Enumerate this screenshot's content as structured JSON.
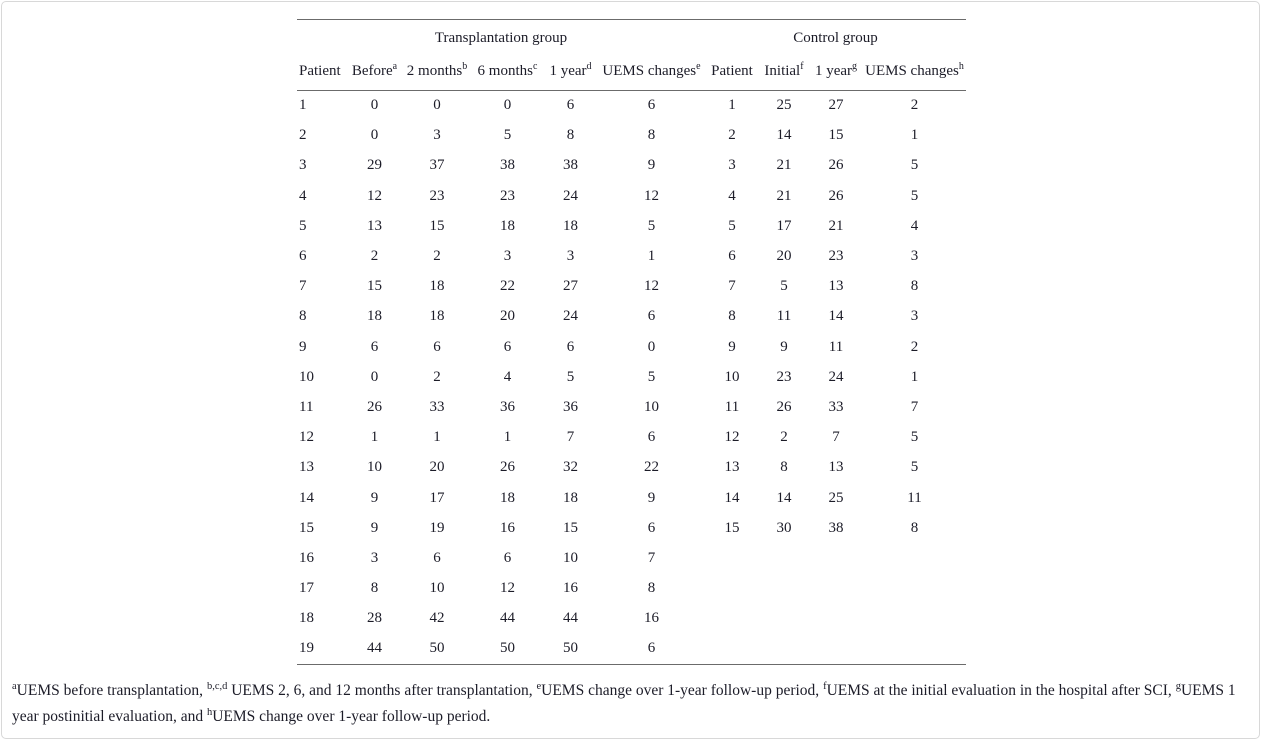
{
  "page": {
    "background": "#ffffff",
    "border_color": "#d8d8d8",
    "text_color": "#1c1c28",
    "rule_color": "#6b6b6b"
  },
  "table": {
    "group_headers": [
      {
        "label": "Transplantation group",
        "span": 6
      },
      {
        "label": "Control group",
        "span": 4
      }
    ],
    "columns": [
      {
        "label": "Patient",
        "sup": ""
      },
      {
        "label": "Before",
        "sup": "a"
      },
      {
        "label": "2 months",
        "sup": "b"
      },
      {
        "label": "6 months",
        "sup": "c"
      },
      {
        "label": "1 year",
        "sup": "d"
      },
      {
        "label": "UEMS changes",
        "sup": "e"
      },
      {
        "label": "Patient",
        "sup": ""
      },
      {
        "label": "Initial",
        "sup": "f"
      },
      {
        "label": "1 year",
        "sup": "g"
      },
      {
        "label": "UEMS changes",
        "sup": "h"
      }
    ],
    "rows": [
      [
        "1",
        "0",
        "0",
        "0",
        "6",
        "6",
        "1",
        "25",
        "27",
        "2"
      ],
      [
        "2",
        "0",
        "3",
        "5",
        "8",
        "8",
        "2",
        "14",
        "15",
        "1"
      ],
      [
        "3",
        "29",
        "37",
        "38",
        "38",
        "9",
        "3",
        "21",
        "26",
        "5"
      ],
      [
        "4",
        "12",
        "23",
        "23",
        "24",
        "12",
        "4",
        "21",
        "26",
        "5"
      ],
      [
        "5",
        "13",
        "15",
        "18",
        "18",
        "5",
        "5",
        "17",
        "21",
        "4"
      ],
      [
        "6",
        "2",
        "2",
        "3",
        "3",
        "1",
        "6",
        "20",
        "23",
        "3"
      ],
      [
        "7",
        "15",
        "18",
        "22",
        "27",
        "12",
        "7",
        "5",
        "13",
        "8"
      ],
      [
        "8",
        "18",
        "18",
        "20",
        "24",
        "6",
        "8",
        "11",
        "14",
        "3"
      ],
      [
        "9",
        "6",
        "6",
        "6",
        "6",
        "0",
        "9",
        "9",
        "11",
        "2"
      ],
      [
        "10",
        "0",
        "2",
        "4",
        "5",
        "5",
        "10",
        "23",
        "24",
        "1"
      ],
      [
        "11",
        "26",
        "33",
        "36",
        "36",
        "10",
        "11",
        "26",
        "33",
        "7"
      ],
      [
        "12",
        "1",
        "1",
        "1",
        "7",
        "6",
        "12",
        "2",
        "7",
        "5"
      ],
      [
        "13",
        "10",
        "20",
        "26",
        "32",
        "22",
        "13",
        "8",
        "13",
        "5"
      ],
      [
        "14",
        "9",
        "17",
        "18",
        "18",
        "9",
        "14",
        "14",
        "25",
        "11"
      ],
      [
        "15",
        "9",
        "19",
        "16",
        "15",
        "6",
        "15",
        "30",
        "38",
        "8"
      ],
      [
        "16",
        "3",
        "6",
        "6",
        "10",
        "7",
        "",
        "",
        "",
        ""
      ],
      [
        "17",
        "8",
        "10",
        "12",
        "16",
        "8",
        "",
        "",
        "",
        ""
      ],
      [
        "18",
        "28",
        "42",
        "44",
        "44",
        "16",
        "",
        "",
        "",
        ""
      ],
      [
        "19",
        "44",
        "50",
        "50",
        "50",
        "6",
        "",
        "",
        "",
        ""
      ]
    ]
  },
  "footnote": {
    "segments": [
      {
        "sup": "a"
      },
      {
        "text": "UEMS before transplantation, "
      },
      {
        "sup": "b,c,d"
      },
      {
        "text": " UEMS 2, 6, and 12 months after transplantation, "
      },
      {
        "sup": "e"
      },
      {
        "text": "UEMS change over 1-year follow-up period, "
      },
      {
        "sup": "f"
      },
      {
        "text": "UEMS at the initial evaluation in the hospital after SCI, "
      },
      {
        "sup": "g"
      },
      {
        "text": "UEMS 1 year postinitial evaluation, and "
      },
      {
        "sup": "h"
      },
      {
        "text": "UEMS change over 1-year follow-up period."
      }
    ]
  }
}
